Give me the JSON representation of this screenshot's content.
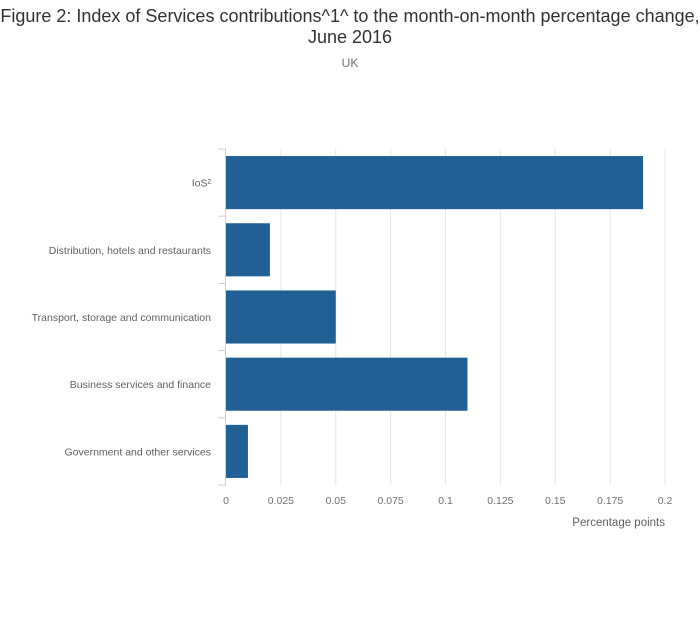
{
  "header": {
    "title": "Figure 2: Index of Services contributions^1^ to the month-on-month percentage change, June 2016",
    "subtitle": "UK"
  },
  "colors": {
    "bar": "#206095",
    "grid": "#e6e6e6",
    "axis": "#cfcfcf"
  },
  "chart_data": {
    "type": "bar",
    "orientation": "horizontal",
    "categories": [
      "IoS²",
      "Distribution, hotels and restaurants",
      "Transport, storage and communication",
      "Business services and finance",
      "Government and other services"
    ],
    "values": [
      0.19,
      0.02,
      0.05,
      0.11,
      0.01
    ],
    "xlabel": "Percentage points",
    "ylabel": "",
    "xlim": [
      0,
      0.2
    ],
    "xticks": [
      "0",
      "0.025",
      "0.05",
      "0.075",
      "0.1",
      "0.125",
      "0.15",
      "0.175",
      "0.2"
    ],
    "grid": "vertical"
  }
}
